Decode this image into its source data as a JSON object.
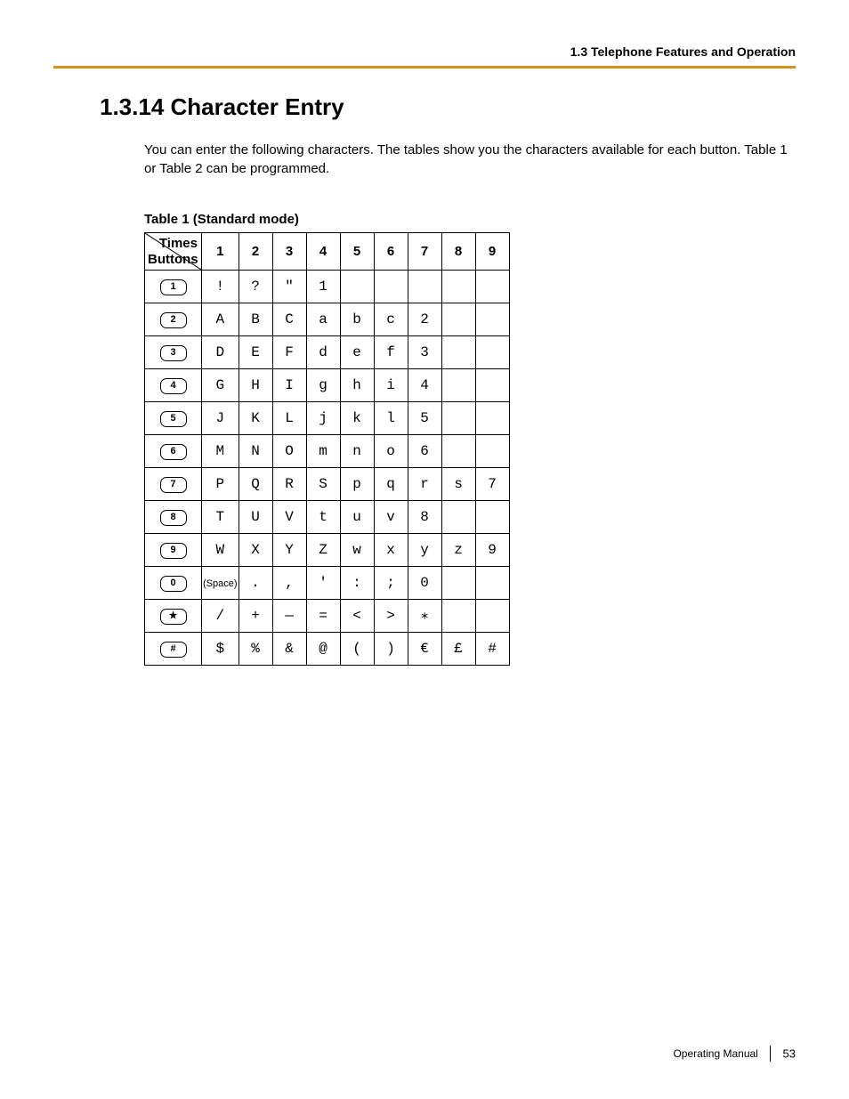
{
  "header": {
    "section": "1.3 Telephone Features and Operation"
  },
  "heading": "1.3.14  Character Entry",
  "intro": "You can enter the following characters. The tables show you the characters available for each button. Table 1 or Table 2 can be programmed.",
  "table": {
    "caption": "Table 1 (Standard mode)",
    "corner": {
      "times": "Times",
      "buttons": "Buttons"
    },
    "columns": [
      "1",
      "2",
      "3",
      "4",
      "5",
      "6",
      "7",
      "8",
      "9"
    ],
    "rows": [
      {
        "btn": "1",
        "cells": [
          "!",
          "?",
          "\"",
          "1",
          "",
          "",
          "",
          "",
          ""
        ]
      },
      {
        "btn": "2",
        "cells": [
          "A",
          "B",
          "C",
          "a",
          "b",
          "c",
          "2",
          "",
          ""
        ]
      },
      {
        "btn": "3",
        "cells": [
          "D",
          "E",
          "F",
          "d",
          "e",
          "f",
          "3",
          "",
          ""
        ]
      },
      {
        "btn": "4",
        "cells": [
          "G",
          "H",
          "I",
          "g",
          "h",
          "i",
          "4",
          "",
          ""
        ]
      },
      {
        "btn": "5",
        "cells": [
          "J",
          "K",
          "L",
          "j",
          "k",
          "l",
          "5",
          "",
          ""
        ]
      },
      {
        "btn": "6",
        "cells": [
          "M",
          "N",
          "O",
          "m",
          "n",
          "o",
          "6",
          "",
          ""
        ]
      },
      {
        "btn": "7",
        "cells": [
          "P",
          "Q",
          "R",
          "S",
          "p",
          "q",
          "r",
          "s",
          "7"
        ]
      },
      {
        "btn": "8",
        "cells": [
          "T",
          "U",
          "V",
          "t",
          "u",
          "v",
          "8",
          "",
          ""
        ]
      },
      {
        "btn": "9",
        "cells": [
          "W",
          "X",
          "Y",
          "Z",
          "w",
          "x",
          "y",
          "z",
          "9"
        ]
      },
      {
        "btn": "0",
        "cells": [
          "(Space)",
          ".",
          ",",
          "'",
          ":",
          ";",
          "0",
          "",
          ""
        ]
      },
      {
        "btn": "★",
        "cells": [
          "/",
          "+",
          "—",
          "=",
          "<",
          ">",
          "∗",
          "",
          ""
        ]
      },
      {
        "btn": "#",
        "cells": [
          "$",
          "%",
          "&",
          "@",
          "(",
          ")",
          "€",
          "£",
          "#"
        ]
      }
    ]
  },
  "footer": {
    "label": "Operating Manual",
    "page": "53"
  },
  "colors": {
    "rule": "#d89020",
    "text": "#000000",
    "bg": "#ffffff"
  }
}
